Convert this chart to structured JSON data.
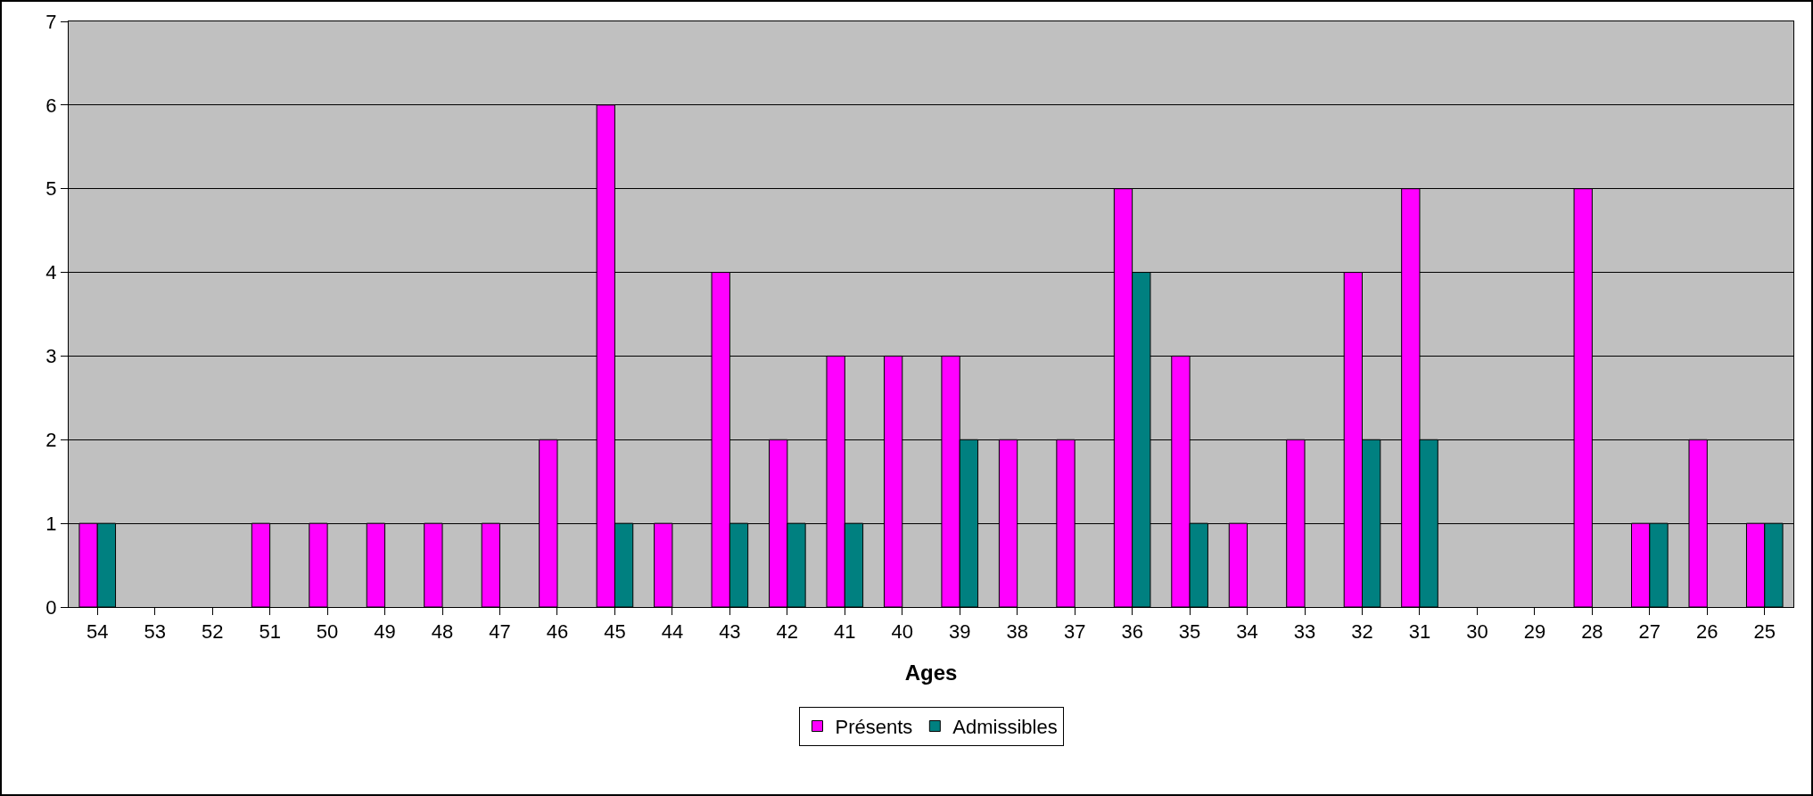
{
  "chart_data": {
    "type": "bar",
    "xlabel": "Ages",
    "categories": [
      "54",
      "53",
      "52",
      "51",
      "50",
      "49",
      "48",
      "47",
      "46",
      "45",
      "44",
      "43",
      "42",
      "41",
      "40",
      "39",
      "38",
      "37",
      "36",
      "35",
      "34",
      "33",
      "32",
      "31",
      "30",
      "29",
      "28",
      "27",
      "26",
      "25"
    ],
    "series": [
      {
        "name": "Présents",
        "color": "#ff00ff",
        "values": [
          1,
          0,
          0,
          1,
          1,
          1,
          1,
          1,
          2,
          6,
          1,
          4,
          2,
          3,
          3,
          3,
          2,
          2,
          5,
          3,
          1,
          2,
          4,
          5,
          0,
          0,
          5,
          1,
          2,
          1
        ]
      },
      {
        "name": "Admissibles",
        "color": "#008080",
        "values": [
          1,
          0,
          0,
          0,
          0,
          0,
          0,
          0,
          0,
          1,
          0,
          1,
          1,
          1,
          0,
          2,
          0,
          0,
          4,
          1,
          0,
          0,
          2,
          2,
          0,
          0,
          0,
          1,
          0,
          1
        ]
      }
    ],
    "ylim": [
      0,
      7
    ],
    "yticks": [
      0,
      1,
      2,
      3,
      4,
      5,
      6,
      7
    ],
    "grid": "y",
    "legend": "bottom"
  }
}
